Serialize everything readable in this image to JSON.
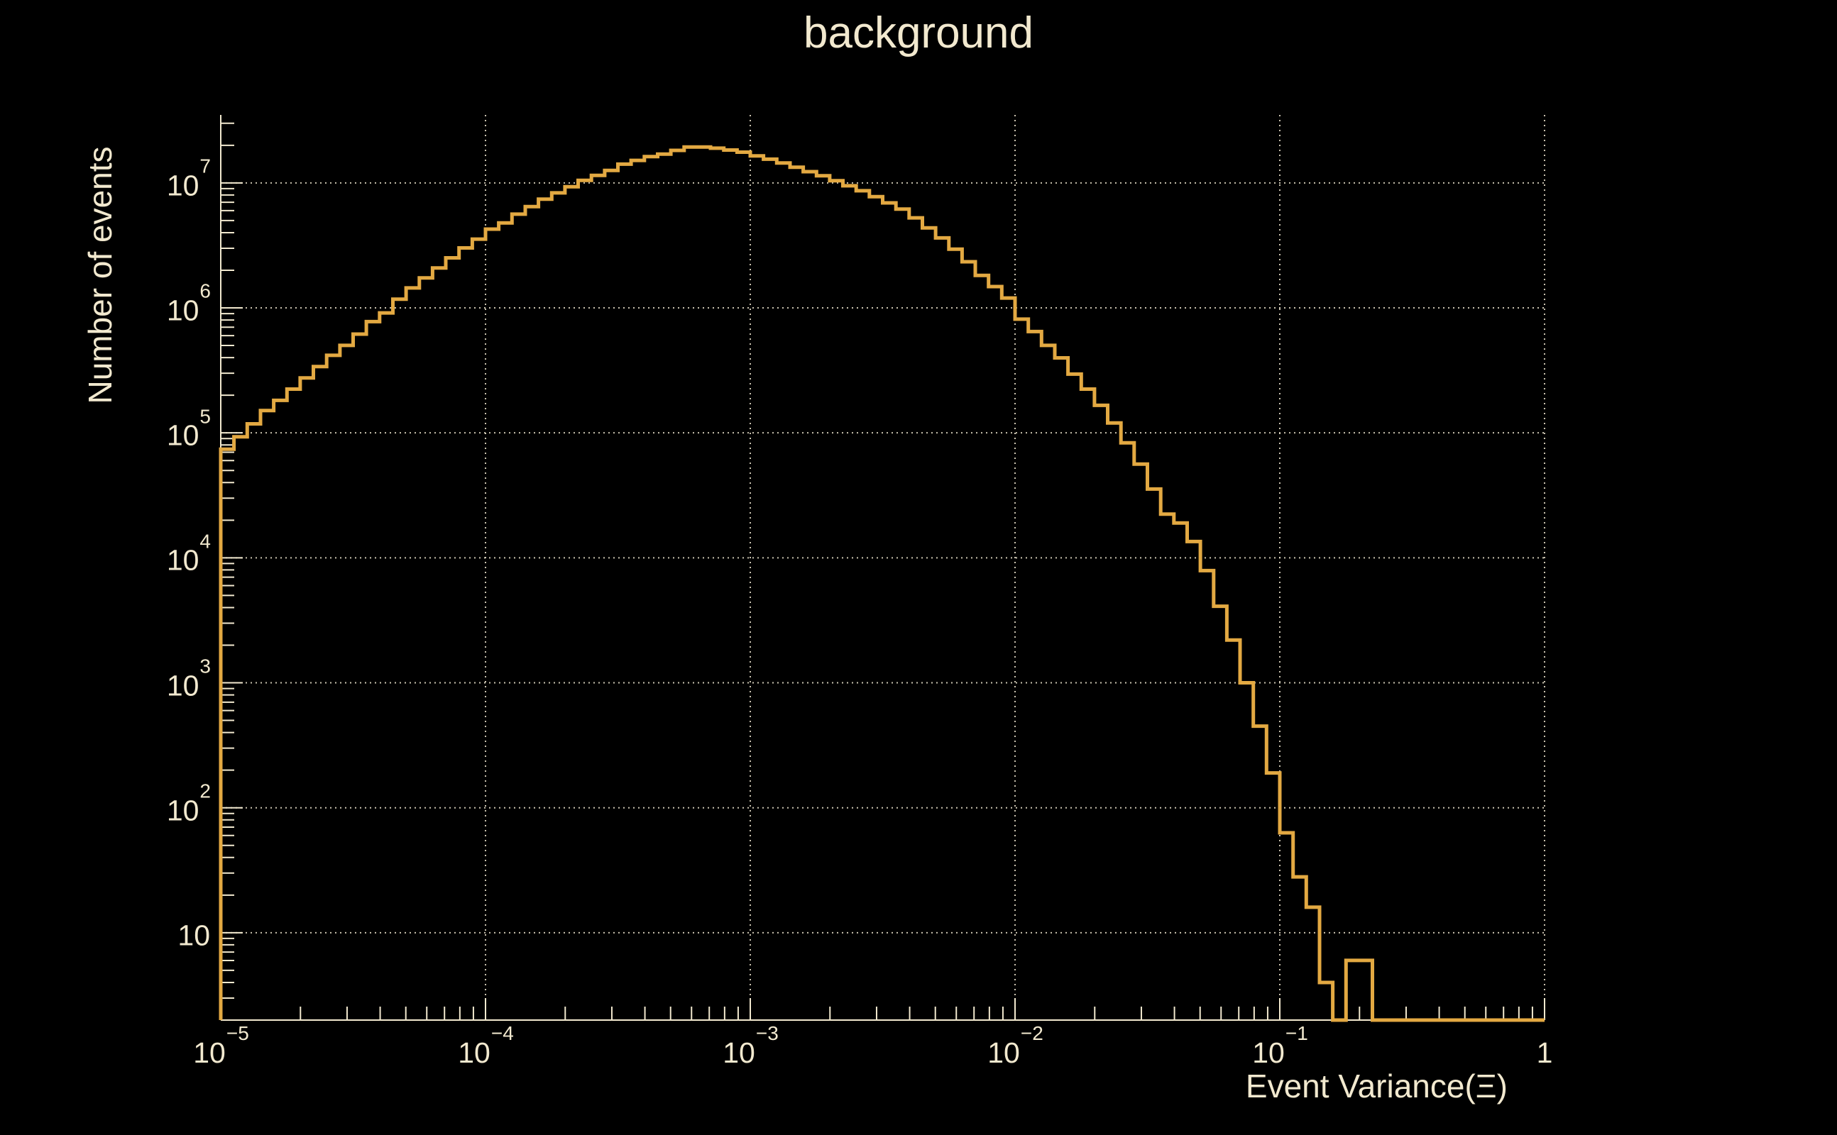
{
  "title": "background",
  "colors": {
    "background": "#000000",
    "axis_text": "#f2e9cf",
    "axis_line": "#f2e9cf",
    "gridline": "#eee6cf",
    "histogram_line": "#e3a942"
  },
  "y_axis": {
    "title": "Number of events",
    "scale": "log",
    "range_min": 2,
    "range_max": 35000000,
    "ticks": [
      {
        "label": "10",
        "exp": "7",
        "value": 10000000
      },
      {
        "label": "10",
        "exp": "6",
        "value": 1000000
      },
      {
        "label": "10",
        "exp": "5",
        "value": 100000
      },
      {
        "label": "10",
        "exp": "4",
        "value": 10000
      },
      {
        "label": "10",
        "exp": "3",
        "value": 1000
      },
      {
        "label": "10",
        "exp": "2",
        "value": 100
      },
      {
        "label": "10",
        "exp": "",
        "value": 10
      }
    ]
  },
  "x_axis": {
    "title": "Event Variance(Ξ)",
    "scale": "log",
    "range_min": 1e-05,
    "range_max": 1,
    "ticks": [
      {
        "label": "10",
        "exp": "−5",
        "value": 1e-05
      },
      {
        "label": "10",
        "exp": "−4",
        "value": 0.0001
      },
      {
        "label": "10",
        "exp": "−3",
        "value": 0.001
      },
      {
        "label": "10",
        "exp": "−2",
        "value": 0.01
      },
      {
        "label": "10",
        "exp": "−1",
        "value": 0.1
      },
      {
        "label": "1",
        "exp": "",
        "value": 1
      }
    ]
  },
  "chart_data": {
    "type": "line",
    "subtype": "histogram-step",
    "title": "background",
    "xlabel": "Event Variance(Ξ)",
    "ylabel": "Number of events",
    "xlim": [
      1e-05,
      1
    ],
    "ylim": [
      2,
      35000000
    ],
    "xscale": "log",
    "yscale": "log",
    "grid": true,
    "grid_style": "dotted",
    "bins_per_decade": 20,
    "n_bins": 100,
    "bin_edges_log10_start": -5,
    "bin_edges_log10_end": 0,
    "peak_value": 19370000,
    "peak_x": 0.0007,
    "counts": [
      74000,
      93000,
      118000,
      151000,
      182000,
      224000,
      275000,
      339000,
      417000,
      501000,
      617000,
      776000,
      912000,
      1175000,
      1445000,
      1738000,
      2089000,
      2512000,
      3020000,
      3550000,
      4270000,
      4790000,
      5620000,
      6460000,
      7410000,
      8320000,
      9330000,
      10470000,
      11480000,
      12590000,
      14130000,
      15140000,
      16220000,
      16980000,
      18200000,
      19370000,
      19370000,
      18970000,
      18320000,
      17620000,
      16450000,
      15490000,
      14450000,
      13340000,
      12300000,
      11400000,
      10400000,
      9480000,
      8650000,
      7760000,
      6920000,
      6170000,
      5250000,
      4370000,
      3630000,
      2950000,
      2340000,
      1820000,
      1480000,
      1200000,
      813000,
      646000,
      501000,
      398000,
      295000,
      224000,
      166000,
      120000,
      83200,
      56200,
      35500,
      22400,
      19000,
      13500,
      7900,
      4100,
      2200,
      1000,
      450,
      190,
      63,
      28,
      16,
      4,
      0,
      6,
      6,
      0,
      0,
      0,
      0,
      0,
      0,
      0,
      0,
      0,
      0,
      0,
      0,
      0
    ]
  }
}
